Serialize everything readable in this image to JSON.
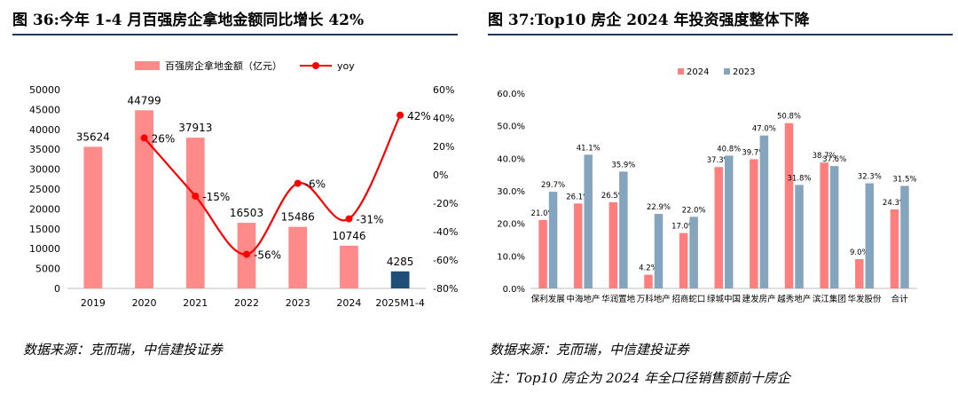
{
  "charts": [
    {
      "title": "图 36:今年 1-4 月百强房企拿地金额同比增长 42%",
      "source": "数据来源：克而瑞，中信建投证券",
      "chart_data": {
        "type": "bar+line",
        "categories": [
          "2019",
          "2020",
          "2021",
          "2022",
          "2023",
          "2024",
          "2025M1-4"
        ],
        "bar_series": {
          "name": "百强房企拿地金额（亿元）",
          "values": [
            35624,
            44799,
            37913,
            16503,
            15486,
            10746,
            4285
          ],
          "labels": [
            "35624",
            "44799",
            "37913",
            "16503",
            "15486",
            "10746",
            "4285"
          ],
          "color": "#ff8a8a",
          "highlight_color": "#1f4e79",
          "highlight_index": 6
        },
        "line_series": {
          "name": "yoy",
          "points": [
            {
              "category": "2020",
              "value": 26,
              "label": "26%"
            },
            {
              "category": "2021",
              "value": -15,
              "label": "-15%"
            },
            {
              "category": "2022",
              "value": -56,
              "label": "-56%"
            },
            {
              "category": "2023",
              "value": -6,
              "label": "-6%"
            },
            {
              "category": "2024",
              "value": -31,
              "label": "-31%"
            },
            {
              "category": "2025M1-4",
              "value": 42,
              "label": "42%"
            }
          ],
          "color": "#ff0000"
        },
        "y_left": {
          "min": 0,
          "max": 50000,
          "ticks": [
            "0",
            "5000",
            "10000",
            "15000",
            "20000",
            "25000",
            "30000",
            "35000",
            "40000",
            "45000",
            "50000"
          ]
        },
        "y_right": {
          "min": -80,
          "max": 60,
          "ticks": [
            "-80%",
            "-60%",
            "-40%",
            "-20%",
            "0%",
            "20%",
            "40%",
            "60%"
          ]
        }
      }
    },
    {
      "title": "图 37:Top10 房企 2024 年投资强度整体下降",
      "source": "数据来源：克而瑞，中信建投证券",
      "note": "注：Top10 房企为 2024 年全口径销售额前十房企",
      "chart_data": {
        "type": "bar",
        "categories": [
          "保利发展",
          "中海地产",
          "华润置地",
          "万科地产",
          "招商蛇口",
          "绿城中国",
          "建发房产",
          "越秀地产",
          "滨江集团",
          "华发股份",
          "合计"
        ],
        "series": [
          {
            "name": "2024",
            "color": "#ff7f7f",
            "values": [
              21.0,
              26.1,
              26.5,
              4.2,
              17.0,
              37.3,
              39.7,
              50.8,
              38.7,
              9.0,
              24.3
            ],
            "labels": [
              "21.0%",
              "26.1%",
              "26.5%",
              "4.2%",
              "17.0%",
              "37.3%",
              "39.7%",
              "50.8%",
              "38.7%",
              "9.0%",
              "24.3%"
            ]
          },
          {
            "name": "2023",
            "color": "#85a5be",
            "values": [
              29.7,
              41.1,
              35.9,
              22.9,
              22.0,
              40.8,
              47.0,
              31.8,
              37.6,
              32.3,
              31.5
            ],
            "labels": [
              "29.7%",
              "41.1%",
              "35.9%",
              "22.9%",
              "22.0%",
              "40.8%",
              "47.0%",
              "31.8%",
              "37.6%",
              "32.3%",
              "31.5%"
            ]
          }
        ],
        "y_axis": {
          "min": 0,
          "max": 60,
          "ticks": [
            "0.0%",
            "10.0%",
            "20.0%",
            "30.0%",
            "40.0%",
            "50.0%",
            "60.0%"
          ]
        }
      }
    }
  ]
}
